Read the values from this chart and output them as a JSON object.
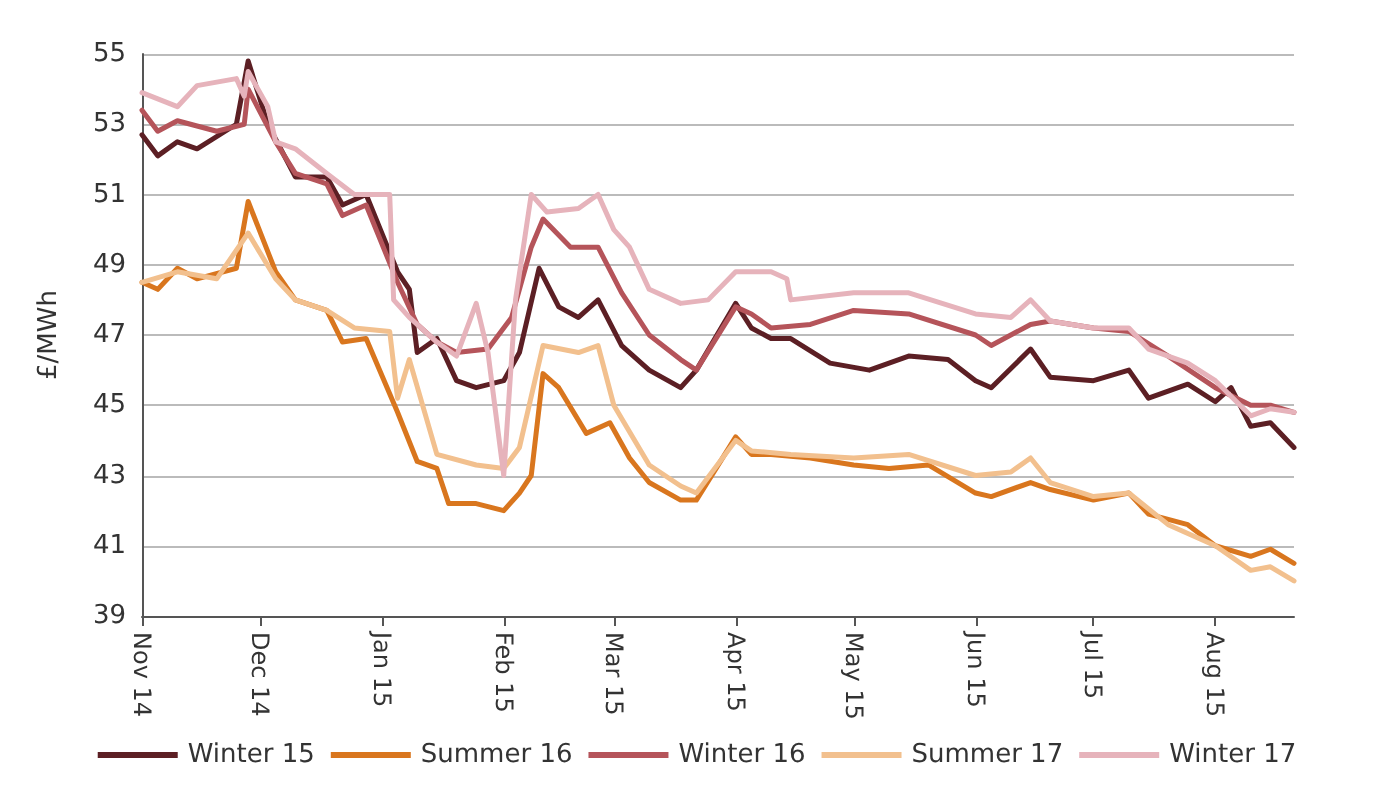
{
  "chart_data": {
    "type": "line",
    "ylabel": "£/MWh",
    "xlim": [
      "2014-11-01",
      "2015-08-21"
    ],
    "ylim": [
      39,
      55
    ],
    "yticks": [
      39,
      41,
      43,
      45,
      47,
      49,
      51,
      53,
      55
    ],
    "xticks": [
      {
        "value": "2014-11-01",
        "label": "Nov 14"
      },
      {
        "value": "2014-12-01",
        "label": "Dec 14"
      },
      {
        "value": "2015-01-01",
        "label": "Jan 15"
      },
      {
        "value": "2015-02-01",
        "label": "Feb 15"
      },
      {
        "value": "2015-03-01",
        "label": "Mar 15"
      },
      {
        "value": "2015-04-01",
        "label": "Apr 15"
      },
      {
        "value": "2015-05-01",
        "label": "May 15"
      },
      {
        "value": "2015-06-01",
        "label": "Jun 15"
      },
      {
        "value": "2015-07-01",
        "label": "Jul 15"
      },
      {
        "value": "2015-08-01",
        "label": "Aug 15"
      }
    ],
    "grid": "y",
    "legend": "bottom",
    "marker": "none",
    "line_style": "solid",
    "series": [
      {
        "name": "Winter 15",
        "color": "#5c1f24",
        "x": [
          "2014-11-01",
          "2014-11-05",
          "2014-11-10",
          "2014-11-15",
          "2014-11-25",
          "2014-11-28",
          "2014-12-03",
          "2014-12-10",
          "2014-12-18",
          "2014-12-22",
          "2014-12-28",
          "2015-01-05",
          "2015-01-08",
          "2015-01-10",
          "2015-01-15",
          "2015-01-20",
          "2015-01-25",
          "2015-02-01",
          "2015-02-05",
          "2015-02-10",
          "2015-02-15",
          "2015-02-20",
          "2015-02-25",
          "2015-03-03",
          "2015-03-10",
          "2015-03-18",
          "2015-03-22",
          "2015-04-01",
          "2015-04-05",
          "2015-04-10",
          "2015-04-15",
          "2015-04-25",
          "2015-05-05",
          "2015-05-15",
          "2015-05-25",
          "2015-06-01",
          "2015-06-05",
          "2015-06-15",
          "2015-06-20",
          "2015-07-01",
          "2015-07-10",
          "2015-07-15",
          "2015-07-25",
          "2015-08-01",
          "2015-08-05",
          "2015-08-10",
          "2015-08-15",
          "2015-08-21"
        ],
        "values": [
          52.7,
          52.1,
          52.5,
          52.3,
          53.0,
          54.8,
          53.0,
          51.5,
          51.5,
          50.7,
          51.0,
          48.8,
          48.3,
          46.5,
          46.9,
          45.7,
          45.5,
          45.7,
          46.5,
          48.9,
          47.8,
          47.5,
          48.0,
          46.7,
          46.0,
          45.5,
          46.0,
          47.9,
          47.2,
          46.9,
          46.9,
          46.2,
          46.0,
          46.4,
          46.3,
          45.7,
          45.5,
          46.6,
          45.8,
          45.7,
          46.0,
          45.2,
          45.6,
          45.1,
          45.5,
          44.4,
          44.5,
          43.8
        ]
      },
      {
        "name": "Summer 16",
        "color": "#d9761e",
        "x": [
          "2014-11-01",
          "2014-11-05",
          "2014-11-10",
          "2014-11-15",
          "2014-11-25",
          "2014-11-28",
          "2014-12-05",
          "2014-12-10",
          "2014-12-18",
          "2014-12-22",
          "2014-12-28",
          "2015-01-05",
          "2015-01-10",
          "2015-01-15",
          "2015-01-18",
          "2015-01-25",
          "2015-02-01",
          "2015-02-05",
          "2015-02-08",
          "2015-02-11",
          "2015-02-15",
          "2015-02-22",
          "2015-02-28",
          "2015-03-05",
          "2015-03-10",
          "2015-03-18",
          "2015-03-22",
          "2015-04-01",
          "2015-04-05",
          "2015-04-10",
          "2015-04-20",
          "2015-05-01",
          "2015-05-10",
          "2015-05-20",
          "2015-06-01",
          "2015-06-05",
          "2015-06-15",
          "2015-06-20",
          "2015-07-01",
          "2015-07-10",
          "2015-07-15",
          "2015-07-25",
          "2015-08-01",
          "2015-08-10",
          "2015-08-15",
          "2015-08-21"
        ],
        "values": [
          48.5,
          48.3,
          48.9,
          48.6,
          48.9,
          50.8,
          48.8,
          48.0,
          47.7,
          46.8,
          46.9,
          44.8,
          43.4,
          43.2,
          42.2,
          42.2,
          42.0,
          42.5,
          43.0,
          45.9,
          45.5,
          44.2,
          44.5,
          43.5,
          42.8,
          42.3,
          42.3,
          44.1,
          43.6,
          43.6,
          43.5,
          43.3,
          43.2,
          43.3,
          42.5,
          42.4,
          42.8,
          42.6,
          42.3,
          42.5,
          41.9,
          41.6,
          41.0,
          40.7,
          40.9,
          40.5
        ]
      },
      {
        "name": "Winter 16",
        "color": "#b5545a",
        "x": [
          "2014-11-01",
          "2014-11-05",
          "2014-11-10",
          "2014-11-20",
          "2014-11-27",
          "2014-11-28",
          "2014-12-05",
          "2014-12-10",
          "2014-12-18",
          "2014-12-22",
          "2014-12-28",
          "2015-01-05",
          "2015-01-10",
          "2015-01-15",
          "2015-01-20",
          "2015-01-28",
          "2015-02-03",
          "2015-02-08",
          "2015-02-11",
          "2015-02-18",
          "2015-02-25",
          "2015-03-03",
          "2015-03-10",
          "2015-03-18",
          "2015-03-22",
          "2015-04-01",
          "2015-04-05",
          "2015-04-10",
          "2015-04-20",
          "2015-05-01",
          "2015-05-15",
          "2015-06-01",
          "2015-06-05",
          "2015-06-15",
          "2015-06-20",
          "2015-07-01",
          "2015-07-10",
          "2015-07-20",
          "2015-08-01",
          "2015-08-10",
          "2015-08-15",
          "2015-08-21"
        ],
        "values": [
          53.4,
          52.8,
          53.1,
          52.8,
          53.0,
          54.0,
          52.5,
          51.6,
          51.3,
          50.4,
          50.7,
          48.5,
          47.3,
          46.8,
          46.5,
          46.6,
          47.5,
          49.5,
          50.3,
          49.5,
          49.5,
          48.2,
          47.0,
          46.3,
          46.0,
          47.8,
          47.6,
          47.2,
          47.3,
          47.7,
          47.6,
          47.0,
          46.7,
          47.3,
          47.4,
          47.2,
          47.1,
          46.4,
          45.5,
          45.0,
          45.0,
          44.8
        ]
      },
      {
        "name": "Summer 17",
        "color": "#f2c08e",
        "x": [
          "2014-11-01",
          "2014-11-10",
          "2014-11-20",
          "2014-11-28",
          "2014-12-05",
          "2014-12-10",
          "2014-12-18",
          "2014-12-25",
          "2015-01-03",
          "2015-01-05",
          "2015-01-08",
          "2015-01-15",
          "2015-01-25",
          "2015-02-01",
          "2015-02-05",
          "2015-02-11",
          "2015-02-20",
          "2015-02-25",
          "2015-03-01",
          "2015-03-10",
          "2015-03-18",
          "2015-03-22",
          "2015-04-01",
          "2015-04-05",
          "2015-04-15",
          "2015-05-01",
          "2015-05-15",
          "2015-06-01",
          "2015-06-10",
          "2015-06-15",
          "2015-06-20",
          "2015-07-01",
          "2015-07-10",
          "2015-07-20",
          "2015-08-01",
          "2015-08-10",
          "2015-08-15",
          "2015-08-21"
        ],
        "values": [
          48.5,
          48.8,
          48.6,
          49.9,
          48.6,
          48.0,
          47.7,
          47.2,
          47.1,
          45.2,
          46.3,
          43.6,
          43.3,
          43.2,
          43.8,
          46.7,
          46.5,
          46.7,
          45.0,
          43.3,
          42.7,
          42.5,
          44.0,
          43.7,
          43.6,
          43.5,
          43.6,
          43.0,
          43.1,
          43.5,
          42.8,
          42.4,
          42.5,
          41.6,
          41.0,
          40.3,
          40.4,
          40.0
        ]
      },
      {
        "name": "Winter 17",
        "color": "#e6b3bb",
        "x": [
          "2014-11-01",
          "2014-11-10",
          "2014-11-15",
          "2014-11-25",
          "2014-11-27",
          "2014-11-28",
          "2014-12-03",
          "2014-12-05",
          "2014-12-10",
          "2014-12-18",
          "2014-12-25",
          "2015-01-03",
          "2015-01-04",
          "2015-01-08",
          "2015-01-15",
          "2015-01-20",
          "2015-01-25",
          "2015-01-28",
          "2015-02-01",
          "2015-02-04",
          "2015-02-08",
          "2015-02-12",
          "2015-02-20",
          "2015-02-25",
          "2015-03-01",
          "2015-03-05",
          "2015-03-10",
          "2015-03-18",
          "2015-03-25",
          "2015-04-01",
          "2015-04-10",
          "2015-04-14",
          "2015-04-15",
          "2015-05-01",
          "2015-05-15",
          "2015-06-01",
          "2015-06-10",
          "2015-06-15",
          "2015-06-20",
          "2015-07-01",
          "2015-07-10",
          "2015-07-15",
          "2015-07-25",
          "2015-08-01",
          "2015-08-10",
          "2015-08-15",
          "2015-08-21"
        ],
        "values": [
          53.9,
          53.5,
          54.1,
          54.3,
          53.8,
          54.5,
          53.5,
          52.5,
          52.3,
          51.6,
          51.0,
          51.0,
          48.0,
          47.5,
          46.8,
          46.4,
          47.9,
          46.5,
          43.0,
          48.0,
          51.0,
          50.5,
          50.6,
          51.0,
          50.0,
          49.5,
          48.3,
          47.9,
          48.0,
          48.8,
          48.8,
          48.6,
          48.0,
          48.2,
          48.2,
          47.6,
          47.5,
          48.0,
          47.4,
          47.2,
          47.2,
          46.6,
          46.2,
          45.7,
          44.7,
          44.9,
          44.8
        ]
      }
    ]
  }
}
